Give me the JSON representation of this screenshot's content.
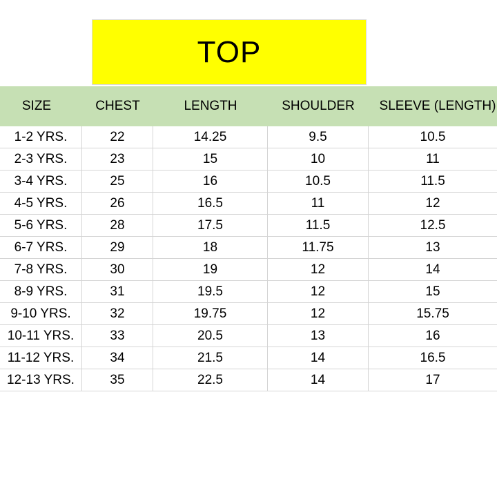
{
  "title": "TOP",
  "headers": [
    "SIZE",
    "CHEST",
    "LENGTH",
    "SHOULDER",
    "SLEEVE (LENGTH)"
  ],
  "rows": [
    [
      "1-2 YRS.",
      "22",
      "14.25",
      "9.5",
      "10.5"
    ],
    [
      "2-3 YRS.",
      "23",
      "15",
      "10",
      "11"
    ],
    [
      "3-4 YRS.",
      "25",
      "16",
      "10.5",
      "11.5"
    ],
    [
      "4-5 YRS.",
      "26",
      "16.5",
      "11",
      "12"
    ],
    [
      "5-6 YRS.",
      "28",
      "17.5",
      "11.5",
      "12.5"
    ],
    [
      "6-7 YRS.",
      "29",
      "18",
      "11.75",
      "13"
    ],
    [
      "7-8 YRS.",
      "30",
      "19",
      "12",
      "14"
    ],
    [
      "8-9 YRS.",
      "31",
      "19.5",
      "12",
      "15"
    ],
    [
      "9-10 YRS.",
      "32",
      "19.75",
      "12",
      "15.75"
    ],
    [
      "10-11 YRS.",
      "33",
      "20.5",
      "13",
      "16"
    ],
    [
      "11-12 YRS.",
      "34",
      "21.5",
      "14",
      "16.5"
    ],
    [
      "12-13 YRS.",
      "35",
      "22.5",
      "14",
      "17"
    ]
  ],
  "colors": {
    "title_bg": "#ffff00",
    "header_bg": "#c6e0b4",
    "grid": "#d4d4d4"
  }
}
